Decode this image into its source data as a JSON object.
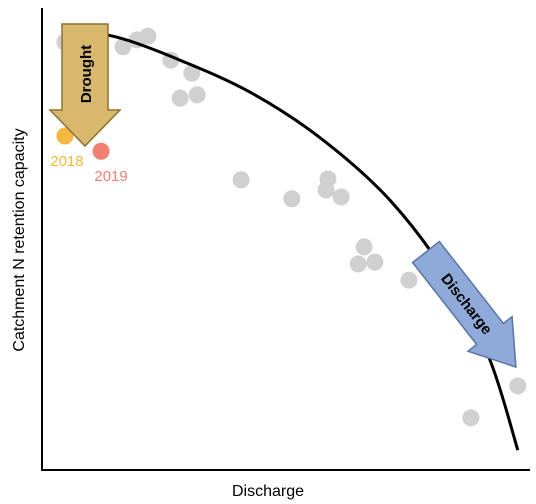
{
  "chart_data": {
    "type": "scatter",
    "xlabel": "Discharge",
    "ylabel": "Catchment N retention capacity",
    "xlim": [
      0,
      100
    ],
    "ylim": [
      0,
      100
    ],
    "series": [
      {
        "color": "#d0d0d0",
        "x": [
          4.7,
          7.8,
          16.6,
          19.5,
          21.7,
          26.4,
          30.7,
          28.3,
          31.8,
          40.8,
          51.2,
          58.6,
          58.2,
          61.3,
          66.0,
          64.8,
          68.2,
          75.2,
          87.9,
          97.5
        ],
        "values": [
          92.6,
          93.1,
          91.6,
          93.1,
          93.9,
          88.7,
          85.9,
          80.5,
          81.2,
          62.8,
          58.7,
          63.0,
          60.6,
          59.1,
          48.3,
          44.6,
          45.0,
          41.1,
          11.3,
          18.2
        ]
      },
      {
        "color": "#f5b840",
        "label": "2018",
        "x": [
          4.7
        ],
        "values": [
          72.3
        ]
      },
      {
        "color": "#f08070",
        "label": "2019",
        "x": [
          12.1
        ],
        "values": [
          69.0
        ]
      }
    ],
    "curve": {
      "color": "#000000",
      "x": [
        4.7,
        16.0,
        28.3,
        42.6,
        57.0,
        71.3,
        83.6,
        91.8,
        97.5
      ],
      "values": [
        95.7,
        93.5,
        88.7,
        81.8,
        71.9,
        58.4,
        41.1,
        23.8,
        4.3
      ]
    },
    "annotations": [
      "Drought",
      "Discharge"
    ]
  }
}
